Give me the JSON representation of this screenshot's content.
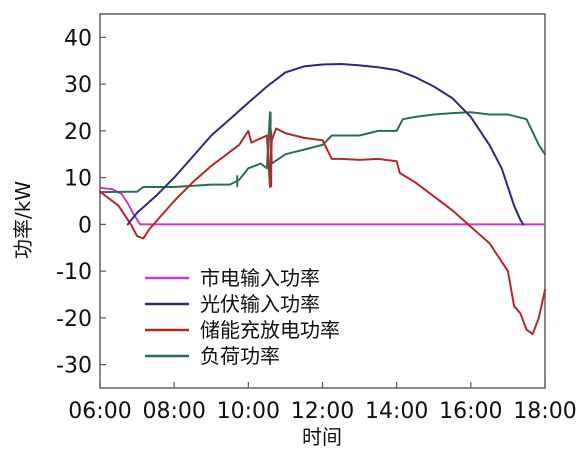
{
  "chart_data": {
    "type": "line",
    "title": "",
    "xlabel": "时间",
    "ylabel": "功率/kW",
    "xlim": [
      "06:00",
      "18:00"
    ],
    "ylim": [
      -35,
      45
    ],
    "x_ticks": [
      "06:00",
      "08:00",
      "10:00",
      "12:00",
      "14:00",
      "16:00",
      "18:00"
    ],
    "y_ticks": [
      -30,
      -20,
      -10,
      0,
      10,
      20,
      30,
      40
    ],
    "grid": false,
    "legend_position": "bottom-left",
    "series": [
      {
        "name": "市电输入功率",
        "color": "#c03fc8",
        "points": [
          [
            "06:00",
            7.8
          ],
          [
            "06:20",
            7.5
          ],
          [
            "06:35",
            6.5
          ],
          [
            "06:45",
            4.5
          ],
          [
            "06:55",
            2.0
          ],
          [
            "07:05",
            0.0
          ],
          [
            "10:00",
            0.0
          ],
          [
            "14:00",
            0.0
          ],
          [
            "18:00",
            0.0
          ]
        ]
      },
      {
        "name": "光伏输入功率",
        "color": "#2e2a78",
        "points": [
          [
            "06:45",
            0.0
          ],
          [
            "07:00",
            2.5
          ],
          [
            "07:30",
            6.0
          ],
          [
            "08:00",
            10.0
          ],
          [
            "08:30",
            14.5
          ],
          [
            "09:00",
            19.0
          ],
          [
            "09:30",
            22.5
          ],
          [
            "10:00",
            26.0
          ],
          [
            "10:30",
            29.5
          ],
          [
            "11:00",
            32.5
          ],
          [
            "11:30",
            33.8
          ],
          [
            "12:00",
            34.2
          ],
          [
            "12:30",
            34.3
          ],
          [
            "13:00",
            34.0
          ],
          [
            "13:30",
            33.6
          ],
          [
            "14:00",
            33.0
          ],
          [
            "14:30",
            31.5
          ],
          [
            "15:00",
            29.5
          ],
          [
            "15:30",
            27.0
          ],
          [
            "16:00",
            23.0
          ],
          [
            "16:30",
            17.0
          ],
          [
            "16:50",
            12.0
          ],
          [
            "17:00",
            8.0
          ],
          [
            "17:10",
            4.0
          ],
          [
            "17:20",
            1.0
          ],
          [
            "17:25",
            0.0
          ]
        ]
      },
      {
        "name": "储能充放电功率",
        "color": "#b42828",
        "points": [
          [
            "06:00",
            7.0
          ],
          [
            "06:30",
            4.0
          ],
          [
            "06:50",
            0.0
          ],
          [
            "07:00",
            -2.5
          ],
          [
            "07:10",
            -3.0
          ],
          [
            "07:20",
            -1.0
          ],
          [
            "07:40",
            2.0
          ],
          [
            "08:00",
            5.0
          ],
          [
            "08:30",
            9.0
          ],
          [
            "09:00",
            12.5
          ],
          [
            "09:30",
            15.5
          ],
          [
            "09:45",
            17.0
          ],
          [
            "10:00",
            20.0
          ],
          [
            "10:05",
            17.5
          ],
          [
            "10:30",
            19.0
          ],
          [
            "10:35",
            8.0
          ],
          [
            "10:38",
            18.0
          ],
          [
            "10:45",
            20.5
          ],
          [
            "11:00",
            19.5
          ],
          [
            "11:30",
            18.5
          ],
          [
            "12:00",
            18.0
          ],
          [
            "12:15",
            14.0
          ],
          [
            "12:30",
            14.0
          ],
          [
            "13:00",
            13.8
          ],
          [
            "13:30",
            14.0
          ],
          [
            "14:00",
            13.5
          ],
          [
            "14:05",
            11.0
          ],
          [
            "14:30",
            9.0
          ],
          [
            "15:00",
            6.0
          ],
          [
            "15:30",
            3.0
          ],
          [
            "16:00",
            -0.5
          ],
          [
            "16:30",
            -4.0
          ],
          [
            "17:00",
            -10.0
          ],
          [
            "17:10",
            -17.5
          ],
          [
            "17:20",
            -19.0
          ],
          [
            "17:30",
            -22.5
          ],
          [
            "17:40",
            -23.5
          ],
          [
            "17:50",
            -20.0
          ],
          [
            "18:00",
            -14.0
          ]
        ]
      },
      {
        "name": "负荷功率",
        "color": "#2b6e58",
        "points": [
          [
            "06:00",
            6.9
          ],
          [
            "07:00",
            7.0
          ],
          [
            "07:10",
            8.0
          ],
          [
            "08:00",
            8.0
          ],
          [
            "09:00",
            8.5
          ],
          [
            "09:30",
            8.5
          ],
          [
            "09:45",
            9.5
          ],
          [
            "10:00",
            12.0
          ],
          [
            "10:20",
            13.0
          ],
          [
            "10:30",
            12.0
          ],
          [
            "10:35",
            24.0
          ],
          [
            "10:38",
            13.0
          ],
          [
            "11:00",
            15.0
          ],
          [
            "11:30",
            16.0
          ],
          [
            "12:00",
            17.0
          ],
          [
            "12:15",
            19.0
          ],
          [
            "13:00",
            19.0
          ],
          [
            "13:30",
            20.0
          ],
          [
            "14:00",
            20.0
          ],
          [
            "14:10",
            22.5
          ],
          [
            "14:30",
            23.0
          ],
          [
            "15:00",
            23.5
          ],
          [
            "15:30",
            23.8
          ],
          [
            "16:00",
            24.0
          ],
          [
            "16:30",
            23.5
          ],
          [
            "17:00",
            23.5
          ],
          [
            "17:30",
            22.5
          ],
          [
            "17:50",
            17.0
          ],
          [
            "18:00",
            15.0
          ]
        ]
      }
    ],
    "spikes": [
      {
        "series": "负荷功率",
        "x": "10:36",
        "from": 8.0,
        "to": 24.0
      },
      {
        "series": "储能充放电功率",
        "x": "10:37",
        "from": 8.0,
        "to": 20.0
      },
      {
        "series": "负荷功率",
        "x": "09:42",
        "from": 8.0,
        "to": 10.5
      }
    ]
  }
}
